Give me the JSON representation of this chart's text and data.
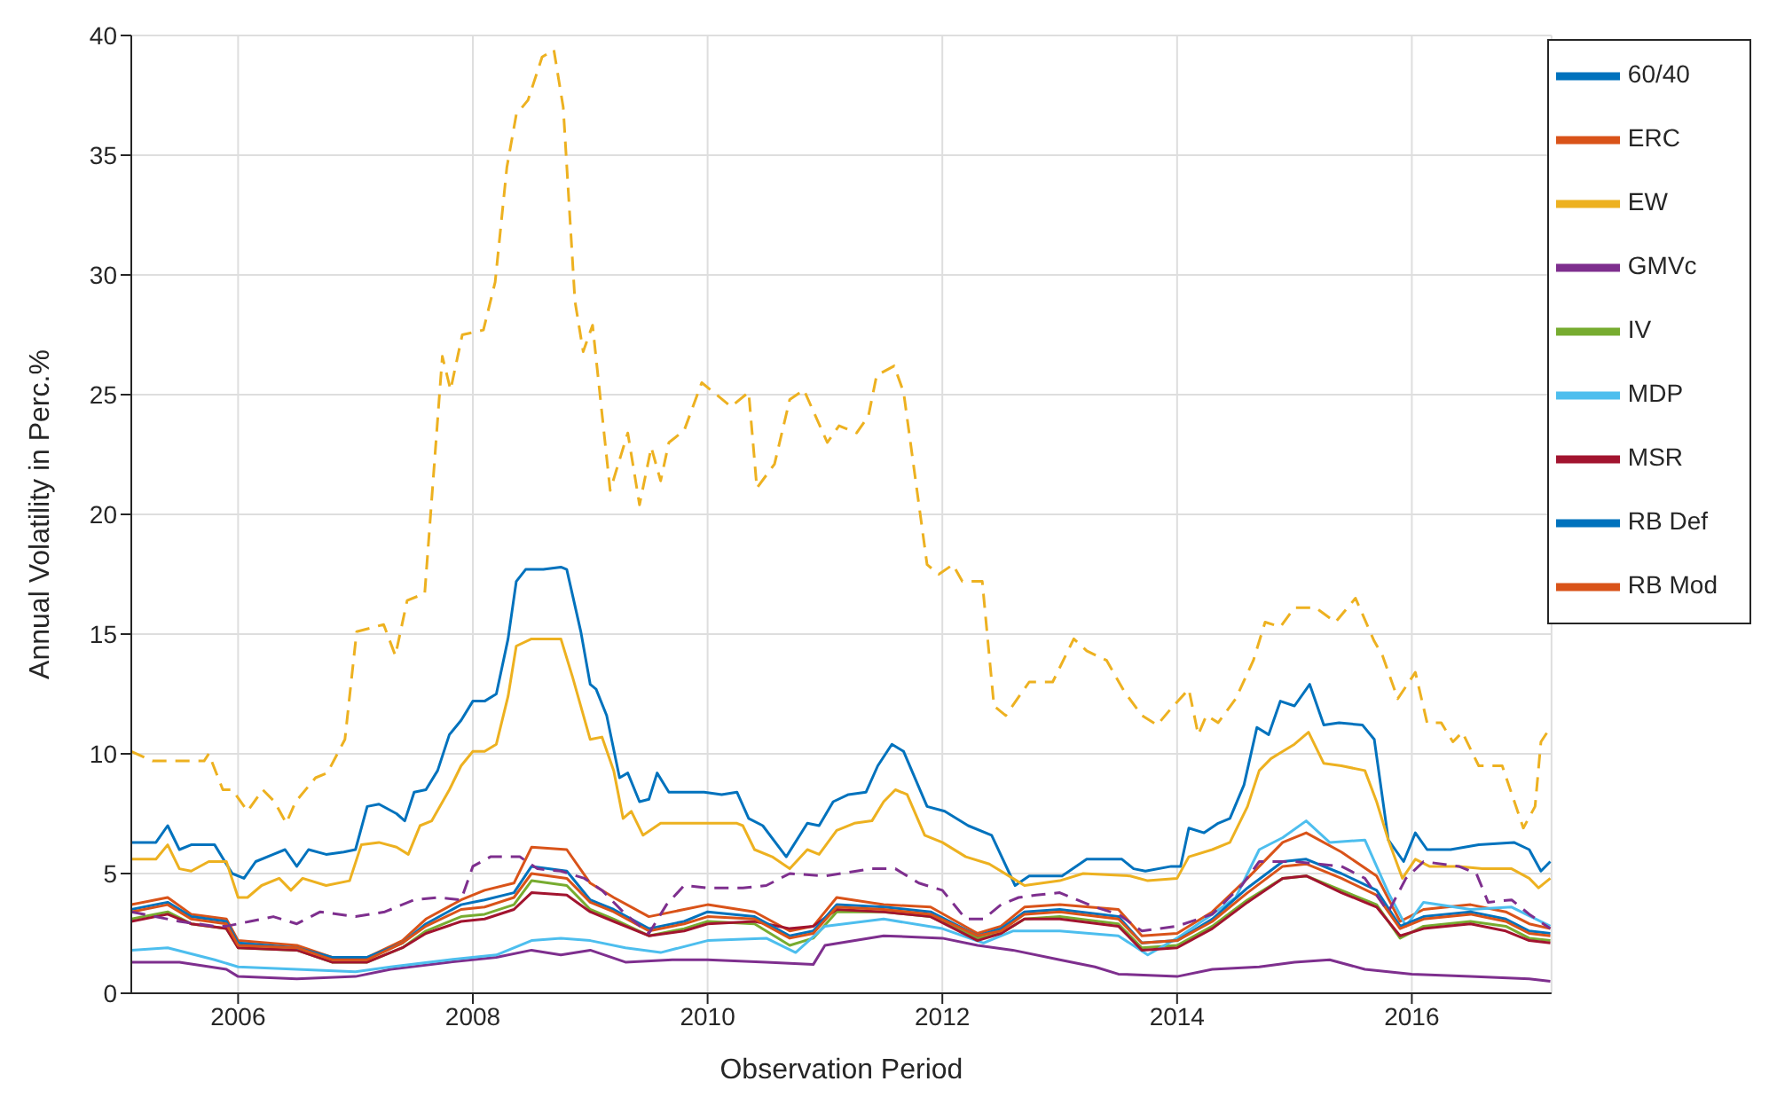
{
  "chart_data": {
    "type": "line",
    "xlabel": "Observation Period",
    "ylabel": "Annual Volatility in Perc.%",
    "xlim": [
      2005.09,
      2017.19
    ],
    "xticks": [
      2006,
      2008,
      2010,
      2012,
      2014,
      2016
    ],
    "ylim": [
      0,
      40
    ],
    "yticks": [
      0,
      5,
      10,
      15,
      20,
      25,
      30,
      35,
      40
    ],
    "grid": true,
    "legend": "top right",
    "series": [
      {
        "name": "60/40",
        "color": "#0072bd",
        "line_style": "solid",
        "x": [
          2005.09,
          2005.3,
          2005.4,
          2005.5,
          2005.6,
          2005.8,
          2005.95,
          2006.05,
          2006.15,
          2006.3,
          2006.4,
          2006.5,
          2006.6,
          2006.75,
          2006.9,
          2007.0,
          2007.1,
          2007.2,
          2007.35,
          2007.42,
          2007.5,
          2007.6,
          2007.7,
          2007.8,
          2007.9,
          2008.0,
          2008.1,
          2008.2,
          2008.3,
          2008.37,
          2008.45,
          2008.6,
          2008.75,
          2008.8,
          2008.92,
          2009.0,
          2009.05,
          2009.14,
          2009.25,
          2009.32,
          2009.42,
          2009.5,
          2009.57,
          2009.67,
          2009.97,
          2010.12,
          2010.25,
          2010.35,
          2010.47,
          2010.67,
          2010.85,
          2010.95,
          2011.07,
          2011.2,
          2011.35,
          2011.45,
          2011.57,
          2011.67,
          2011.87,
          2012.02,
          2012.22,
          2012.42,
          2012.62,
          2012.74,
          2013.02,
          2013.23,
          2013.53,
          2013.63,
          2013.73,
          2013.95,
          2014.03,
          2014.1,
          2014.23,
          2014.35,
          2014.45,
          2014.57,
          2014.68,
          2014.78,
          2014.88,
          2015.0,
          2015.13,
          2015.25,
          2015.38,
          2015.58,
          2015.68,
          2015.8,
          2015.93,
          2016.03,
          2016.13,
          2016.33,
          2016.57,
          2016.87,
          2017.0,
          2017.1,
          2017.18
        ],
        "values": [
          6.3,
          6.3,
          7.0,
          6.0,
          6.2,
          6.2,
          5.0,
          4.8,
          5.5,
          5.8,
          6.0,
          5.3,
          6.0,
          5.8,
          5.9,
          6.0,
          7.8,
          7.9,
          7.5,
          7.2,
          8.4,
          8.5,
          9.3,
          10.8,
          11.4,
          12.2,
          12.2,
          12.5,
          14.8,
          17.2,
          17.7,
          17.7,
          17.8,
          17.7,
          15.1,
          12.9,
          12.7,
          11.6,
          9.0,
          9.2,
          8.0,
          8.1,
          9.2,
          8.4,
          8.4,
          8.3,
          8.4,
          7.3,
          7.0,
          5.7,
          7.1,
          7.0,
          8.0,
          8.3,
          8.4,
          9.5,
          10.4,
          10.1,
          7.8,
          7.6,
          7.0,
          6.6,
          4.5,
          4.9,
          4.9,
          5.6,
          5.6,
          5.2,
          5.1,
          5.3,
          5.3,
          6.9,
          6.7,
          7.1,
          7.3,
          8.7,
          11.1,
          10.8,
          12.2,
          12.0,
          12.9,
          11.2,
          11.3,
          11.2,
          10.6,
          6.4,
          5.5,
          6.7,
          6.0,
          6.0,
          6.2,
          6.3,
          6.0,
          5.1,
          5.5
        ]
      },
      {
        "name": "ERC",
        "color": "#d95319",
        "line_style": "solid",
        "x": [
          2005.09,
          2005.4,
          2005.6,
          2005.9,
          2006.0,
          2006.5,
          2006.8,
          2007.1,
          2007.4,
          2007.6,
          2007.9,
          2008.1,
          2008.35,
          2008.5,
          2008.8,
          2009.0,
          2009.2,
          2009.5,
          2009.8,
          2010.0,
          2010.4,
          2010.7,
          2010.9,
          2011.1,
          2011.5,
          2011.9,
          2012.3,
          2012.5,
          2012.7,
          2013.0,
          2013.5,
          2013.7,
          2014.0,
          2014.3,
          2014.6,
          2014.9,
          2015.1,
          2015.4,
          2015.7,
          2015.9,
          2016.1,
          2016.5,
          2016.8,
          2017.0,
          2017.18
        ],
        "values": [
          3.7,
          4.0,
          3.3,
          3.1,
          2.2,
          2.0,
          1.5,
          1.5,
          2.2,
          3.1,
          3.9,
          4.3,
          4.6,
          6.1,
          6.0,
          4.6,
          4.0,
          3.2,
          3.5,
          3.7,
          3.4,
          2.6,
          2.8,
          4.0,
          3.7,
          3.6,
          2.5,
          2.8,
          3.6,
          3.7,
          3.5,
          2.4,
          2.5,
          3.4,
          4.8,
          6.3,
          6.7,
          5.9,
          4.9,
          3.0,
          3.5,
          3.7,
          3.4,
          2.9,
          2.7
        ]
      },
      {
        "name": "EW",
        "color": "#edb120",
        "line_style": "solid",
        "x": [
          2005.09,
          2005.3,
          2005.4,
          2005.5,
          2005.6,
          2005.75,
          2005.9,
          2006.0,
          2006.08,
          2006.2,
          2006.35,
          2006.45,
          2006.55,
          2006.75,
          2006.95,
          2007.05,
          2007.2,
          2007.35,
          2007.45,
          2007.55,
          2007.65,
          2007.8,
          2007.9,
          2008.0,
          2008.1,
          2008.2,
          2008.3,
          2008.37,
          2008.5,
          2008.75,
          2008.85,
          2009.0,
          2009.1,
          2009.2,
          2009.28,
          2009.35,
          2009.45,
          2009.6,
          2010.25,
          2010.3,
          2010.4,
          2010.55,
          2010.7,
          2010.85,
          2010.95,
          2011.1,
          2011.25,
          2011.4,
          2011.5,
          2011.6,
          2011.7,
          2011.85,
          2012.0,
          2012.2,
          2012.4,
          2012.6,
          2012.7,
          2012.85,
          2013.0,
          2013.2,
          2013.6,
          2013.75,
          2014.0,
          2014.1,
          2014.3,
          2014.45,
          2014.6,
          2014.7,
          2014.8,
          2014.9,
          2015.0,
          2015.12,
          2015.25,
          2015.4,
          2015.6,
          2015.7,
          2015.8,
          2015.92,
          2016.03,
          2016.15,
          2016.4,
          2016.6,
          2016.85,
          2017.0,
          2017.08,
          2017.18
        ],
        "values": [
          5.6,
          5.6,
          6.2,
          5.2,
          5.1,
          5.5,
          5.5,
          4.0,
          4.0,
          4.5,
          4.8,
          4.3,
          4.8,
          4.5,
          4.7,
          6.2,
          6.3,
          6.1,
          5.8,
          7.0,
          7.2,
          8.5,
          9.5,
          10.1,
          10.1,
          10.4,
          12.4,
          14.5,
          14.8,
          14.8,
          13.2,
          10.6,
          10.7,
          9.3,
          7.3,
          7.6,
          6.6,
          7.1,
          7.1,
          7.0,
          6.0,
          5.7,
          5.2,
          6.0,
          5.8,
          6.8,
          7.1,
          7.2,
          8.0,
          8.5,
          8.3,
          6.6,
          6.3,
          5.7,
          5.4,
          4.8,
          4.5,
          4.6,
          4.7,
          5.0,
          4.9,
          4.7,
          4.8,
          5.7,
          6.0,
          6.3,
          7.8,
          9.3,
          9.8,
          10.1,
          10.4,
          10.9,
          9.6,
          9.5,
          9.3,
          8.0,
          6.4,
          4.8,
          5.6,
          5.3,
          5.3,
          5.2,
          5.2,
          4.8,
          4.4,
          4.8
        ]
      },
      {
        "name": "GMVc",
        "color": "#7e2f8e",
        "line_style": "solid",
        "x": [
          2005.09,
          2005.5,
          2005.9,
          2006.0,
          2006.5,
          2007.0,
          2007.3,
          2007.8,
          2008.2,
          2008.5,
          2008.75,
          2009.0,
          2009.3,
          2009.7,
          2010.0,
          2010.5,
          2010.9,
          2011.0,
          2011.5,
          2012.0,
          2012.3,
          2012.6,
          2013.0,
          2013.3,
          2013.5,
          2014.0,
          2014.3,
          2014.7,
          2015.0,
          2015.3,
          2015.6,
          2016.0,
          2016.5,
          2017.0,
          2017.18
        ],
        "values": [
          1.3,
          1.3,
          1.0,
          0.7,
          0.6,
          0.7,
          1.0,
          1.3,
          1.5,
          1.8,
          1.6,
          1.8,
          1.3,
          1.4,
          1.4,
          1.3,
          1.2,
          2.0,
          2.4,
          2.3,
          2.0,
          1.8,
          1.4,
          1.1,
          0.8,
          0.7,
          1.0,
          1.1,
          1.3,
          1.4,
          1.0,
          0.8,
          0.7,
          0.6,
          0.5
        ]
      },
      {
        "name": "IV",
        "color": "#77ac30",
        "line_style": "solid",
        "x": [
          2005.09,
          2005.4,
          2005.6,
          2005.9,
          2006.0,
          2006.5,
          2006.8,
          2007.1,
          2007.4,
          2007.6,
          2007.9,
          2008.1,
          2008.35,
          2008.5,
          2008.8,
          2009.0,
          2009.2,
          2009.5,
          2009.8,
          2010.0,
          2010.4,
          2010.7,
          2010.9,
          2011.1,
          2011.5,
          2011.9,
          2012.3,
          2012.5,
          2012.7,
          2013.0,
          2013.5,
          2013.7,
          2014.0,
          2014.3,
          2014.6,
          2014.9,
          2015.1,
          2015.4,
          2015.7,
          2015.9,
          2016.1,
          2016.5,
          2016.8,
          2017.0,
          2017.18
        ],
        "values": [
          3.1,
          3.4,
          2.9,
          2.7,
          1.9,
          1.8,
          1.3,
          1.3,
          1.9,
          2.6,
          3.2,
          3.3,
          3.7,
          4.7,
          4.5,
          3.5,
          3.1,
          2.4,
          2.7,
          3.0,
          2.9,
          2.0,
          2.3,
          3.4,
          3.4,
          3.2,
          2.3,
          2.5,
          3.1,
          3.2,
          2.9,
          1.9,
          2.0,
          2.8,
          3.9,
          4.8,
          4.9,
          4.3,
          3.7,
          2.3,
          2.8,
          3.0,
          2.8,
          2.3,
          2.2
        ]
      },
      {
        "name": "MDP",
        "color": "#4dbeee",
        "line_style": "solid",
        "x": [
          2005.09,
          2005.4,
          2005.8,
          2006.0,
          2006.5,
          2007.0,
          2007.3,
          2007.8,
          2008.2,
          2008.5,
          2008.75,
          2009.0,
          2009.3,
          2009.6,
          2010.0,
          2010.5,
          2010.75,
          2011.0,
          2011.5,
          2012.0,
          2012.35,
          2012.6,
          2013.0,
          2013.5,
          2013.75,
          2014.0,
          2014.3,
          2014.5,
          2014.7,
          2014.9,
          2015.1,
          2015.3,
          2015.6,
          2015.8,
          2015.95,
          2016.1,
          2016.5,
          2016.85,
          2017.18
        ],
        "values": [
          1.8,
          1.9,
          1.4,
          1.1,
          1.0,
          0.9,
          1.1,
          1.4,
          1.6,
          2.2,
          2.3,
          2.2,
          1.9,
          1.7,
          2.2,
          2.3,
          1.7,
          2.8,
          3.1,
          2.7,
          2.1,
          2.6,
          2.6,
          2.4,
          1.6,
          2.3,
          3.3,
          4.0,
          6.0,
          6.5,
          7.2,
          6.3,
          6.4,
          4.2,
          2.8,
          3.8,
          3.5,
          3.6,
          2.8
        ]
      },
      {
        "name": "MSR",
        "color": "#a2142f",
        "line_style": "solid",
        "x": [
          2005.09,
          2005.4,
          2005.6,
          2005.9,
          2006.0,
          2006.5,
          2006.8,
          2007.1,
          2007.4,
          2007.6,
          2007.9,
          2008.1,
          2008.35,
          2008.5,
          2008.8,
          2009.0,
          2009.2,
          2009.5,
          2009.8,
          2010.0,
          2010.4,
          2010.7,
          2010.9,
          2011.1,
          2011.5,
          2011.9,
          2012.3,
          2012.5,
          2012.7,
          2013.0,
          2013.5,
          2013.7,
          2014.0,
          2014.3,
          2014.6,
          2014.9,
          2015.1,
          2015.4,
          2015.7,
          2015.9,
          2016.1,
          2016.5,
          2016.8,
          2017.0,
          2017.18
        ],
        "values": [
          3.0,
          3.3,
          2.9,
          2.7,
          1.9,
          1.8,
          1.3,
          1.3,
          1.9,
          2.5,
          3.0,
          3.1,
          3.5,
          4.2,
          4.1,
          3.4,
          3.0,
          2.4,
          2.6,
          2.9,
          3.0,
          2.7,
          2.8,
          3.5,
          3.4,
          3.2,
          2.2,
          2.5,
          3.1,
          3.1,
          2.8,
          1.8,
          1.9,
          2.7,
          3.8,
          4.8,
          4.9,
          4.2,
          3.6,
          2.4,
          2.7,
          2.9,
          2.6,
          2.2,
          2.1
        ]
      },
      {
        "name": "RB Def",
        "color": "#0072bd",
        "line_style": "solid",
        "x": [
          2005.09,
          2005.4,
          2005.6,
          2005.9,
          2006.0,
          2006.5,
          2006.8,
          2007.1,
          2007.4,
          2007.6,
          2007.9,
          2008.1,
          2008.35,
          2008.5,
          2008.8,
          2009.0,
          2009.2,
          2009.5,
          2009.8,
          2010.0,
          2010.4,
          2010.7,
          2010.9,
          2011.1,
          2011.5,
          2011.9,
          2012.3,
          2012.5,
          2012.7,
          2013.0,
          2013.5,
          2013.7,
          2014.0,
          2014.3,
          2014.6,
          2014.9,
          2015.1,
          2015.4,
          2015.7,
          2015.9,
          2016.1,
          2016.5,
          2016.8,
          2017.0,
          2017.18
        ],
        "values": [
          3.5,
          3.8,
          3.2,
          3.0,
          2.1,
          1.9,
          1.5,
          1.5,
          2.1,
          2.9,
          3.7,
          3.9,
          4.2,
          5.3,
          5.1,
          3.9,
          3.5,
          2.7,
          3.0,
          3.4,
          3.2,
          2.4,
          2.6,
          3.7,
          3.6,
          3.4,
          2.4,
          2.7,
          3.4,
          3.5,
          3.2,
          2.1,
          2.2,
          3.1,
          4.4,
          5.5,
          5.6,
          5.0,
          4.3,
          2.8,
          3.2,
          3.4,
          3.1,
          2.6,
          2.5
        ]
      },
      {
        "name": "RB Mod",
        "color": "#d95319",
        "line_style": "solid",
        "x": [
          2005.09,
          2005.4,
          2005.6,
          2005.9,
          2006.0,
          2006.5,
          2006.8,
          2007.1,
          2007.4,
          2007.6,
          2007.9,
          2008.1,
          2008.35,
          2008.5,
          2008.8,
          2009.0,
          2009.2,
          2009.5,
          2009.8,
          2010.0,
          2010.4,
          2010.7,
          2010.9,
          2011.1,
          2011.5,
          2011.9,
          2012.3,
          2012.5,
          2012.7,
          2013.0,
          2013.5,
          2013.7,
          2014.0,
          2014.3,
          2014.6,
          2014.9,
          2015.1,
          2015.4,
          2015.7,
          2015.9,
          2016.1,
          2016.5,
          2016.8,
          2017.0,
          2017.18
        ],
        "values": [
          3.4,
          3.7,
          3.1,
          2.9,
          2.0,
          1.9,
          1.4,
          1.4,
          2.1,
          2.8,
          3.5,
          3.6,
          4.0,
          5.0,
          4.8,
          3.8,
          3.4,
          2.6,
          2.9,
          3.2,
          3.1,
          2.3,
          2.5,
          3.6,
          3.5,
          3.3,
          2.4,
          2.6,
          3.3,
          3.4,
          3.1,
          2.1,
          2.2,
          3.0,
          4.2,
          5.3,
          5.4,
          4.8,
          4.1,
          2.7,
          3.1,
          3.3,
          3.0,
          2.5,
          2.4
        ]
      },
      {
        "color": "#edb120",
        "line_style": "dashed",
        "x": [
          2005.09,
          2005.27,
          2005.71,
          2005.75,
          2005.87,
          2005.95,
          2006.08,
          2006.21,
          2006.31,
          2006.41,
          2006.49,
          2006.66,
          2006.76,
          2006.91,
          2007.01,
          2007.24,
          2007.34,
          2007.44,
          2007.59,
          2007.74,
          2007.81,
          2007.91,
          2008.09,
          2008.19,
          2008.29,
          2008.37,
          2008.47,
          2008.59,
          2008.69,
          2008.77,
          2008.87,
          2008.94,
          2009.02,
          2009.17,
          2009.32,
          2009.42,
          2009.52,
          2009.6,
          2009.67,
          2009.8,
          2009.95,
          2010.1,
          2010.2,
          2010.35,
          2010.42,
          2010.57,
          2010.7,
          2010.82,
          2011.02,
          2011.12,
          2011.27,
          2011.37,
          2011.44,
          2011.59,
          2011.67,
          2011.87,
          2011.97,
          2012.09,
          2012.17,
          2012.34,
          2012.44,
          2012.54,
          2012.74,
          2012.94,
          2013.12,
          2013.23,
          2013.4,
          2013.55,
          2013.7,
          2013.83,
          2013.95,
          2014.1,
          2014.18,
          2014.25,
          2014.35,
          2014.5,
          2014.65,
          2014.75,
          2014.88,
          2015.0,
          2015.18,
          2015.35,
          2015.52,
          2015.68,
          2015.75,
          2015.88,
          2016.03,
          2016.13,
          2016.25,
          2016.35,
          2016.43,
          2016.57,
          2016.77,
          2016.95,
          2017.05,
          2017.1,
          2017.18
        ],
        "values": [
          10.1,
          9.7,
          9.7,
          10.0,
          8.5,
          8.5,
          7.6,
          8.5,
          8.0,
          7.1,
          8.0,
          9.0,
          9.2,
          10.6,
          15.1,
          15.4,
          14.1,
          16.4,
          16.7,
          26.6,
          25.2,
          27.5,
          27.7,
          29.7,
          34.5,
          36.7,
          37.3,
          39.1,
          39.4,
          37.0,
          28.9,
          26.8,
          27.9,
          21.0,
          23.4,
          20.4,
          22.8,
          21.4,
          23.0,
          23.5,
          25.5,
          24.9,
          24.5,
          25.1,
          21.1,
          22.1,
          24.8,
          25.2,
          23.0,
          23.7,
          23.4,
          24.1,
          25.8,
          26.2,
          25.1,
          17.9,
          17.5,
          17.9,
          17.2,
          17.2,
          12.0,
          11.6,
          13.0,
          13.0,
          14.8,
          14.3,
          13.9,
          12.6,
          11.6,
          11.2,
          11.9,
          12.7,
          10.8,
          11.6,
          11.3,
          12.3,
          13.9,
          15.5,
          15.3,
          16.1,
          16.1,
          15.5,
          16.5,
          14.7,
          14.1,
          12.3,
          13.4,
          11.3,
          11.3,
          10.5,
          10.9,
          9.5,
          9.5,
          6.9,
          7.8,
          10.5,
          11.1
        ]
      },
      {
        "color": "#7e2f8e",
        "line_style": "dashed",
        "x": [
          2005.09,
          2005.5,
          2005.8,
          2005.9,
          2006.1,
          2006.3,
          2006.5,
          2006.7,
          2007.0,
          2007.25,
          2007.5,
          2007.7,
          2007.9,
          2008.0,
          2008.15,
          2008.4,
          2008.55,
          2008.75,
          2008.95,
          2009.1,
          2009.3,
          2009.5,
          2009.65,
          2009.8,
          2010.0,
          2010.3,
          2010.5,
          2010.7,
          2011.0,
          2011.4,
          2011.6,
          2011.8,
          2012.0,
          2012.2,
          2012.35,
          2012.5,
          2012.65,
          2012.8,
          2013.0,
          2013.3,
          2013.5,
          2013.7,
          2014.0,
          2014.3,
          2014.55,
          2014.7,
          2015.0,
          2015.4,
          2015.6,
          2015.8,
          2015.95,
          2016.1,
          2016.4,
          2016.55,
          2016.65,
          2016.85,
          2017.0,
          2017.18
        ],
        "values": [
          3.4,
          3.0,
          2.8,
          2.8,
          3.0,
          3.2,
          2.9,
          3.4,
          3.2,
          3.4,
          3.9,
          4.0,
          3.9,
          5.3,
          5.7,
          5.7,
          5.2,
          5.1,
          4.8,
          4.3,
          3.3,
          2.5,
          3.7,
          4.5,
          4.4,
          4.4,
          4.5,
          5.0,
          4.9,
          5.2,
          5.2,
          4.6,
          4.3,
          3.1,
          3.1,
          3.7,
          4.0,
          4.1,
          4.2,
          3.6,
          3.3,
          2.6,
          2.8,
          3.3,
          4.5,
          5.5,
          5.5,
          5.3,
          4.8,
          3.4,
          4.8,
          5.5,
          5.3,
          5.0,
          3.8,
          3.9,
          3.3,
          2.7
        ]
      }
    ]
  }
}
